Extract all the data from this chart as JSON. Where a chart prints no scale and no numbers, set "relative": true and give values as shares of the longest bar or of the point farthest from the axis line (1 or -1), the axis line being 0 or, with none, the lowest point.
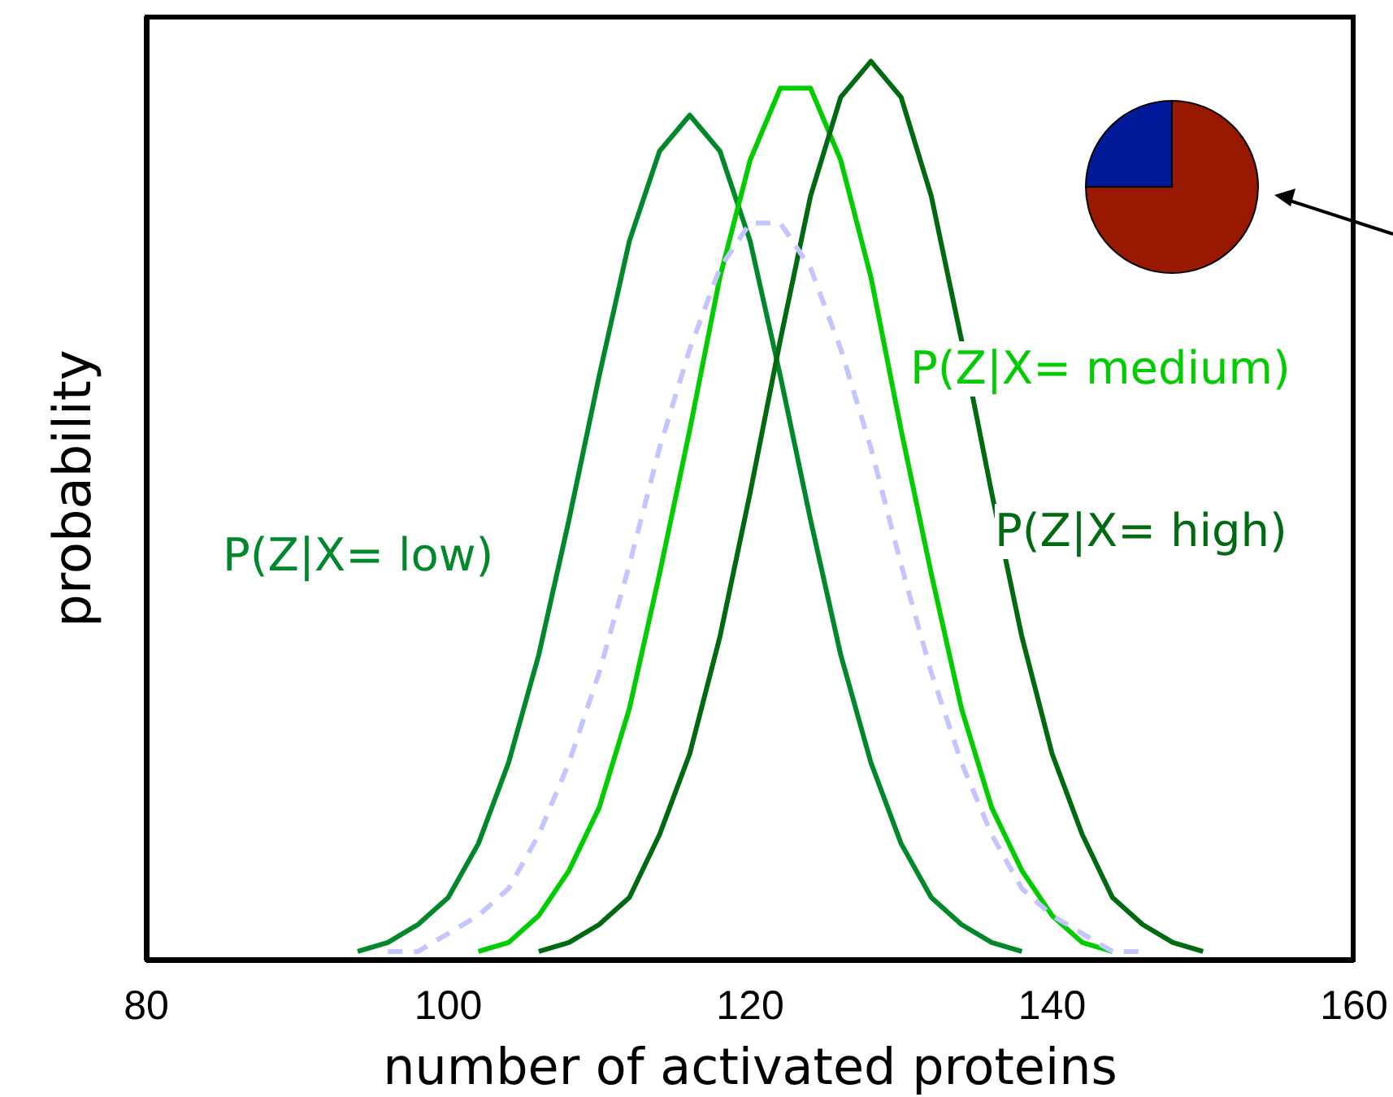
{
  "chart_data": [
    {
      "type": "line",
      "xlabel": "number of activated proteins",
      "ylabel": "probability",
      "relative": true,
      "xlim": [
        80,
        160
      ],
      "xticks": [
        80,
        100,
        120,
        140,
        160
      ],
      "marker": "none",
      "x": [
        94,
        96,
        98,
        100,
        102,
        104,
        106,
        108,
        110,
        112,
        114,
        116,
        118,
        120,
        122,
        124,
        126,
        128,
        130,
        132,
        134,
        136,
        138,
        140,
        142,
        144,
        146,
        148,
        150
      ],
      "series": [
        {
          "name": "P(Z|X= low)",
          "color": "#00882a",
          "values": [
            0.01,
            0.02,
            0.04,
            0.07,
            0.13,
            0.22,
            0.34,
            0.49,
            0.65,
            0.8,
            0.9,
            0.94,
            0.9,
            0.8,
            0.65,
            0.49,
            0.34,
            0.22,
            0.13,
            0.07,
            0.04,
            0.02,
            0.01,
            null,
            null,
            null,
            null,
            null,
            null
          ]
        },
        {
          "name": "P(Z|X= medium)",
          "color": "#00cc00",
          "values": [
            null,
            null,
            null,
            null,
            0.01,
            0.02,
            0.05,
            0.1,
            0.17,
            0.28,
            0.43,
            0.59,
            0.76,
            0.89,
            0.97,
            0.97,
            0.89,
            0.76,
            0.59,
            0.43,
            0.28,
            0.17,
            0.1,
            0.05,
            0.02,
            0.01,
            null,
            null,
            null
          ]
        },
        {
          "name": "P(Z|X= high)",
          "color": "#006a10",
          "values": [
            null,
            null,
            null,
            null,
            null,
            null,
            0.01,
            0.02,
            0.04,
            0.07,
            0.14,
            0.23,
            0.36,
            0.52,
            0.69,
            0.85,
            0.96,
            1,
            0.96,
            0.85,
            0.69,
            0.52,
            0.36,
            0.23,
            0.14,
            0.07,
            0.04,
            0.02,
            0.01
          ]
        },
        {
          "color": "#c4c4ff",
          "line_style": "dashed",
          "values": [
            null,
            0.01,
            0.01,
            0.03,
            0.05,
            0.08,
            0.14,
            0.22,
            0.32,
            0.44,
            0.57,
            0.68,
            0.77,
            0.82,
            0.82,
            0.77,
            0.68,
            0.57,
            0.44,
            0.32,
            0.22,
            0.14,
            0.08,
            0.05,
            0.03,
            0.01,
            0.01,
            null,
            null
          ]
        }
      ]
    },
    {
      "type": "pie",
      "categories": [
        null,
        null
      ],
      "values": [
        25,
        75
      ],
      "colors": [
        "#001a99",
        "#991800"
      ]
    }
  ]
}
